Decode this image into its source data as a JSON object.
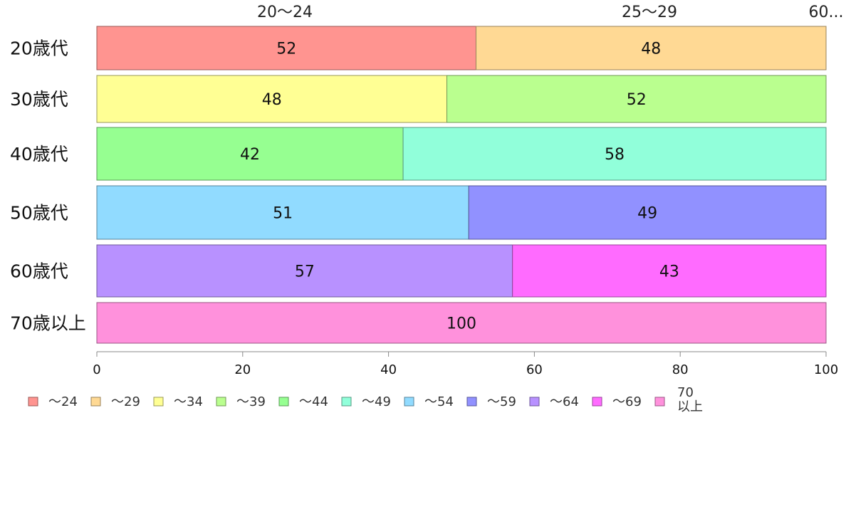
{
  "chart_data": {
    "type": "bar",
    "orientation": "horizontal",
    "stacked": true,
    "categories": [
      "20歳代",
      "30歳代",
      "40歳代",
      "50歳代",
      "60歳代",
      "70歳以上"
    ],
    "xlim": [
      0,
      100
    ],
    "x_ticks": [
      "0",
      "20",
      "40",
      "60",
      "80",
      "100"
    ],
    "top_labels": [
      "20〜24",
      "25〜29",
      "60..."
    ],
    "legend_position": "bottom",
    "series": [
      {
        "name": "〜24",
        "color": "#ff9490"
      },
      {
        "name": "〜29",
        "color": "#ffd994"
      },
      {
        "name": "〜34",
        "color": "#ffff94"
      },
      {
        "name": "〜39",
        "color": "#baff8f"
      },
      {
        "name": "〜44",
        "color": "#96ff91"
      },
      {
        "name": "〜49",
        "color": "#91ffda"
      },
      {
        "name": "〜54",
        "color": "#91dbff"
      },
      {
        "name": "〜59",
        "color": "#9191ff"
      },
      {
        "name": "〜64",
        "color": "#b891ff"
      },
      {
        "name": "〜69",
        "color": "#ff6bff"
      },
      {
        "name": "70\n以上",
        "color": "#ff91dc"
      }
    ],
    "bars": [
      {
        "category": "20歳代",
        "segments": [
          {
            "series": 0,
            "value": 52,
            "label": "52"
          },
          {
            "series": 1,
            "value": 48,
            "label": "48"
          }
        ]
      },
      {
        "category": "30歳代",
        "segments": [
          {
            "series": 2,
            "value": 48,
            "label": "48"
          },
          {
            "series": 3,
            "value": 52,
            "label": "52"
          }
        ]
      },
      {
        "category": "40歳代",
        "segments": [
          {
            "series": 4,
            "value": 42,
            "label": "42"
          },
          {
            "series": 5,
            "value": 58,
            "label": "58"
          }
        ]
      },
      {
        "category": "50歳代",
        "segments": [
          {
            "series": 6,
            "value": 51,
            "label": "51"
          },
          {
            "series": 7,
            "value": 49,
            "label": "49"
          }
        ]
      },
      {
        "category": "60歳代",
        "segments": [
          {
            "series": 8,
            "value": 57,
            "label": "57"
          },
          {
            "series": 9,
            "value": 43,
            "label": "43"
          }
        ]
      },
      {
        "category": "70歳以上",
        "segments": [
          {
            "series": 10,
            "value": 100,
            "label": "100"
          }
        ]
      }
    ]
  }
}
